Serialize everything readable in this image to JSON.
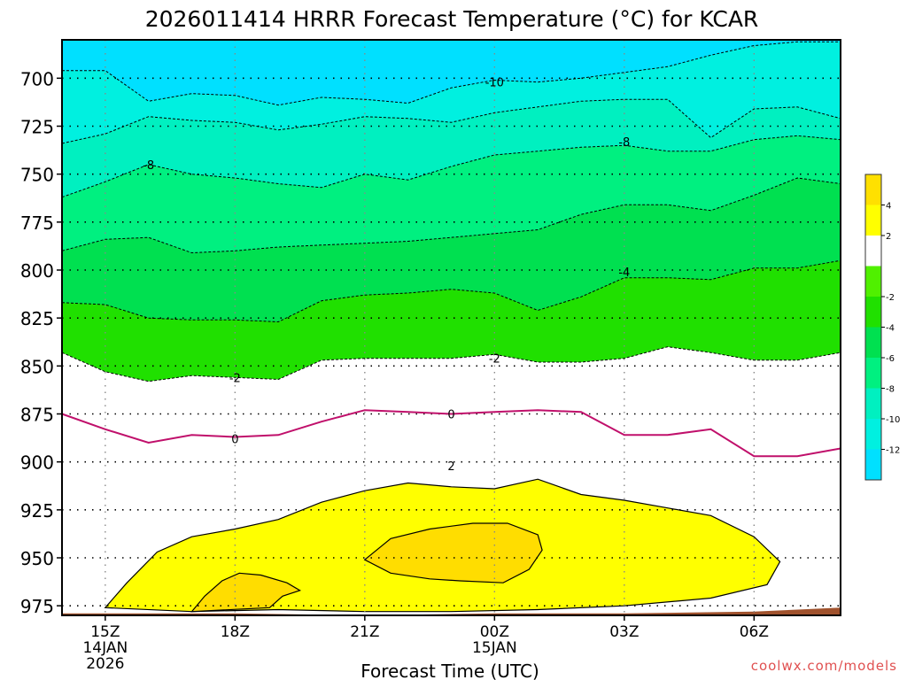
{
  "chart_data": {
    "type": "heatmap",
    "title": "2026011414 HRRR Forecast Temperature (°C) for KCAR",
    "xlabel": "Forecast Time (UTC)",
    "ylabel": "",
    "credit": "coolwx.com/models",
    "xlim": [
      -1,
      17
    ],
    "ylim": [
      980,
      680
    ],
    "y_ticks": [
      700,
      725,
      750,
      775,
      800,
      825,
      850,
      875,
      900,
      925,
      950,
      975
    ],
    "x_ticks": [
      {
        "t": 0,
        "label": "15Z",
        "sub1": "14JAN",
        "sub2": "2026"
      },
      {
        "t": 3,
        "label": "18Z",
        "sub1": "",
        "sub2": ""
      },
      {
        "t": 6,
        "label": "21Z",
        "sub1": "",
        "sub2": ""
      },
      {
        "t": 9,
        "label": "00Z",
        "sub1": "15JAN",
        "sub2": ""
      },
      {
        "t": 12,
        "label": "03Z",
        "sub1": "",
        "sub2": ""
      },
      {
        "t": 15,
        "label": "06Z",
        "sub1": "",
        "sub2": ""
      }
    ],
    "colorbar": {
      "colors": [
        "#00e0ff",
        "#00f0e0",
        "#00f0c0",
        "#00f080",
        "#00e050",
        "#20e000",
        "#50f000",
        "#ffffff",
        "#ffff00",
        "#ffe000"
      ],
      "bounds": [
        -14,
        -12,
        -10,
        -8,
        -6,
        -4,
        -2,
        0,
        2,
        4,
        6
      ],
      "labels": [
        "-12",
        "-10",
        "-8",
        "-6",
        "-4",
        "-2",
        "2",
        "4"
      ],
      "label_values": [
        -12,
        -10,
        -8,
        -6,
        -4,
        -2,
        2,
        4
      ]
    },
    "times": [
      -1,
      0,
      1,
      2,
      3,
      4,
      5,
      6,
      7,
      8,
      9,
      10,
      11,
      12,
      13,
      14,
      15,
      16,
      17
    ],
    "contours": [
      {
        "level": "-10",
        "kind": "dashed",
        "fill": "#00f0e0",
        "label_pos": [
          9,
          702
        ],
        "p": [
          696,
          696,
          712,
          708,
          709,
          714,
          710,
          711,
          713,
          705,
          701,
          702,
          700,
          697,
          694,
          688,
          683,
          681,
          681
        ]
      },
      {
        "level": "-8",
        "kind": "dashed",
        "fill": "#00f0c0",
        "label_pos": [
          1,
          745
        ],
        "label_pos2": [
          12,
          733
        ],
        "p": [
          734,
          729,
          720,
          722,
          723,
          727,
          724,
          720,
          721,
          723,
          718,
          715,
          712,
          711,
          711,
          731,
          716,
          715,
          721
        ]
      },
      {
        "level": "-6",
        "kind": "dashed",
        "fill": "#00f080",
        "label_pos": null,
        "p": [
          762,
          754,
          745,
          750,
          752,
          755,
          757,
          750,
          753,
          746,
          740,
          738,
          736,
          735,
          738,
          738,
          732,
          730,
          732
        ]
      },
      {
        "level": "-4",
        "kind": "dashed",
        "fill": "#00e050",
        "label_pos": [
          12,
          801
        ],
        "p": [
          790,
          784,
          783,
          791,
          790,
          788,
          787,
          786,
          785,
          783,
          781,
          779,
          771,
          766,
          766,
          769,
          761,
          752,
          755
        ]
      },
      {
        "level": "-2",
        "kind": "dashed",
        "fill": "#20e000",
        "label_pos": null,
        "p": [
          817,
          818,
          825,
          826,
          826,
          827,
          816,
          813,
          812,
          810,
          812,
          821,
          814,
          804,
          804,
          805,
          799,
          799,
          795
        ]
      },
      {
        "level": "-2",
        "kind": "dashed",
        "fill": "#50f000",
        "label_pos": [
          3,
          856
        ],
        "label_pos2": [
          9,
          846
        ],
        "p": [
          843,
          853,
          858,
          855,
          856,
          857,
          847,
          846,
          846,
          846,
          844,
          848,
          848,
          846,
          840,
          843,
          847,
          847,
          843
        ]
      },
      {
        "level": "0",
        "kind": "solid",
        "color": "#c0106b",
        "label_pos": [
          3,
          888
        ],
        "label_pos2": [
          8,
          875
        ],
        "p": [
          875,
          883,
          890,
          886,
          887,
          886,
          879,
          873,
          874,
          875,
          874,
          873,
          874,
          886,
          886,
          883,
          897,
          897,
          893
        ]
      }
    ],
    "warm_regions": [
      {
        "level": "2",
        "fill": "#ffff00",
        "label_pos": [
          8,
          902
        ],
        "pts": [
          [
            0,
            976
          ],
          [
            0.5,
            963
          ],
          [
            1.2,
            947
          ],
          [
            2,
            939
          ],
          [
            3,
            935
          ],
          [
            4,
            930
          ],
          [
            5,
            921
          ],
          [
            6,
            915
          ],
          [
            7,
            911
          ],
          [
            8,
            913
          ],
          [
            9,
            914
          ],
          [
            10,
            909
          ],
          [
            11,
            917
          ],
          [
            12,
            920
          ],
          [
            13,
            924
          ],
          [
            14,
            928
          ],
          [
            15,
            939
          ],
          [
            15.6,
            952
          ],
          [
            15.3,
            964
          ],
          [
            14,
            971
          ],
          [
            12,
            975
          ],
          [
            10,
            977
          ],
          [
            8,
            978
          ],
          [
            6,
            978
          ],
          [
            4,
            977
          ],
          [
            2,
            978
          ],
          [
            0,
            976
          ]
        ]
      },
      {
        "level": "4",
        "fill": "#ffdd00",
        "label_pos": null,
        "pts": [
          [
            6,
            951
          ],
          [
            6.6,
            940
          ],
          [
            7.5,
            935
          ],
          [
            8.5,
            932
          ],
          [
            9.3,
            932
          ],
          [
            10,
            938
          ],
          [
            10.1,
            946
          ],
          [
            9.8,
            956
          ],
          [
            9.2,
            963
          ],
          [
            8.2,
            962
          ],
          [
            7.5,
            961
          ],
          [
            6.6,
            958
          ],
          [
            6,
            951
          ]
        ]
      },
      {
        "level": "4",
        "fill": "#ffdd00",
        "label_pos": null,
        "pts": [
          [
            2.0,
            978
          ],
          [
            2.3,
            970
          ],
          [
            2.7,
            962
          ],
          [
            3.1,
            958
          ],
          [
            3.6,
            959
          ],
          [
            4.2,
            963
          ],
          [
            4.5,
            967
          ],
          [
            4.1,
            970
          ],
          [
            3.8,
            976
          ],
          [
            2.0,
            978
          ]
        ]
      }
    ],
    "terrain": {
      "fill": "#a0522d",
      "pts": [
        [
          -1,
          979
        ],
        [
          3,
          979
        ],
        [
          6,
          980
        ],
        [
          9,
          979
        ],
        [
          12,
          979
        ],
        [
          15,
          978
        ],
        [
          16,
          977
        ],
        [
          17,
          976
        ],
        [
          17,
          980
        ],
        [
          -1,
          980
        ]
      ]
    }
  }
}
